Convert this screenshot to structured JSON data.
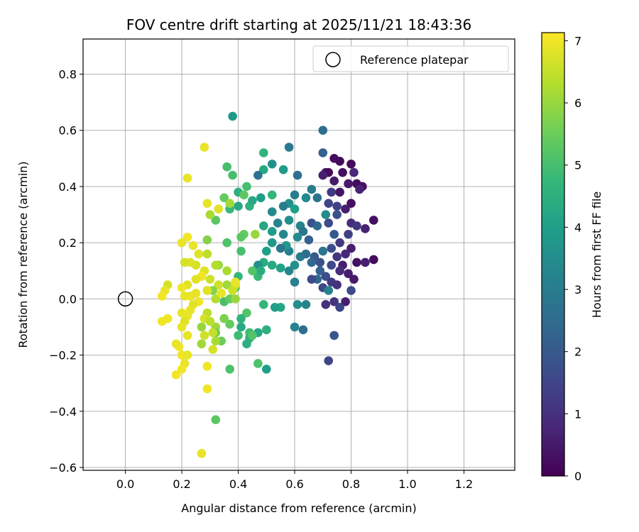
{
  "chart_data": {
    "type": "scatter",
    "title": "FOV centre drift starting at 2025/11/21 18:43:36",
    "xlabel": "Angular distance from reference (arcmin)",
    "ylabel": "Rotation from reference (arcmin)",
    "xlim": [
      -0.15,
      1.38
    ],
    "ylim": [
      -0.61,
      0.925
    ],
    "xticks": [
      0.0,
      0.2,
      0.4,
      0.6,
      0.8,
      1.0,
      1.2
    ],
    "xtick_labels": [
      "0.0",
      "0.2",
      "0.4",
      "0.6",
      "0.8",
      "1.0",
      "1.2"
    ],
    "yticks": [
      -0.6,
      -0.4,
      -0.2,
      0.0,
      0.2,
      0.4,
      0.6,
      0.8
    ],
    "ytick_labels": [
      "−0.6",
      "−0.4",
      "−0.2",
      "0.0",
      "0.2",
      "0.4",
      "0.6",
      "0.8"
    ],
    "grid": true,
    "legend": {
      "placement": "top-right",
      "entries": [
        "Reference platepar"
      ]
    },
    "reference_point": {
      "x": 0.0,
      "y": 0.0
    },
    "colorbar": {
      "label": "Hours from first FF file",
      "range": [
        0,
        7.13
      ],
      "ticks": [
        0,
        1,
        2,
        3,
        4,
        5,
        6,
        7
      ],
      "tick_labels": [
        "0",
        "1",
        "2",
        "3",
        "4",
        "5",
        "6",
        "7"
      ],
      "colormap": "viridis",
      "colors": [
        "#440154",
        "#482878",
        "#3e4989",
        "#31688e",
        "#26828e",
        "#1f9e89",
        "#35b779",
        "#6ece58",
        "#b5de2b",
        "#fde725"
      ]
    },
    "points": [
      [
        0.74,
        0.5,
        0.2
      ],
      [
        0.76,
        0.49,
        0.2
      ],
      [
        0.8,
        0.48,
        0.2
      ],
      [
        0.77,
        0.45,
        0.3
      ],
      [
        0.81,
        0.45,
        0.8
      ],
      [
        0.71,
        0.45,
        0.4
      ],
      [
        0.82,
        0.41,
        0.2
      ],
      [
        0.84,
        0.4,
        0.3
      ],
      [
        0.79,
        0.41,
        0.5
      ],
      [
        0.74,
        0.42,
        0.5
      ],
      [
        0.72,
        0.45,
        0.2
      ],
      [
        0.7,
        0.44,
        0.6
      ],
      [
        0.73,
        0.38,
        1.2
      ],
      [
        0.76,
        0.38,
        0.4
      ],
      [
        0.83,
        0.39,
        0.7
      ],
      [
        0.8,
        0.34,
        0.3
      ],
      [
        0.78,
        0.32,
        0.6
      ],
      [
        0.75,
        0.33,
        1.4
      ],
      [
        0.72,
        0.34,
        1.5
      ],
      [
        0.75,
        0.3,
        1.8
      ],
      [
        0.72,
        0.27,
        1.6
      ],
      [
        0.8,
        0.27,
        0.9
      ],
      [
        0.82,
        0.26,
        1.1
      ],
      [
        0.85,
        0.25,
        0.7
      ],
      [
        0.79,
        0.23,
        1.4
      ],
      [
        0.88,
        0.28,
        0.3
      ],
      [
        0.71,
        0.3,
        3.4
      ],
      [
        0.74,
        0.23,
        2.0
      ],
      [
        0.76,
        0.2,
        1.2
      ],
      [
        0.8,
        0.18,
        0.6
      ],
      [
        0.78,
        0.16,
        0.8
      ],
      [
        0.73,
        0.18,
        1.7
      ],
      [
        0.7,
        0.17,
        2.8
      ],
      [
        0.75,
        0.15,
        1.1
      ],
      [
        0.77,
        0.12,
        0.6
      ],
      [
        0.82,
        0.13,
        0.3
      ],
      [
        0.85,
        0.13,
        0.6
      ],
      [
        0.88,
        0.14,
        0.2
      ],
      [
        0.76,
        0.1,
        0.9
      ],
      [
        0.73,
        0.12,
        1.6
      ],
      [
        0.69,
        0.1,
        2.2
      ],
      [
        0.71,
        0.08,
        1.7
      ],
      [
        0.68,
        0.07,
        2.4
      ],
      [
        0.73,
        0.06,
        1.2
      ],
      [
        0.7,
        0.04,
        1.6
      ],
      [
        0.72,
        0.03,
        3.2
      ],
      [
        0.79,
        0.09,
        0.6
      ],
      [
        0.81,
        0.07,
        0.5
      ],
      [
        0.8,
        0.03,
        1.6
      ],
      [
        0.75,
        0.05,
        1.0
      ],
      [
        0.71,
        -0.02,
        1.0
      ],
      [
        0.74,
        -0.01,
        1.1
      ],
      [
        0.78,
        -0.01,
        0.6
      ],
      [
        0.76,
        -0.03,
        1.5
      ],
      [
        0.74,
        -0.13,
        1.9
      ],
      [
        0.72,
        -0.22,
        1.5
      ],
      [
        0.7,
        0.6,
        2.6
      ],
      [
        0.7,
        0.52,
        2.2
      ],
      [
        0.68,
        0.36,
        2.7
      ],
      [
        0.66,
        0.39,
        3.0
      ],
      [
        0.64,
        0.36,
        3.4
      ],
      [
        0.6,
        0.37,
        3.0
      ],
      [
        0.58,
        0.34,
        3.6
      ],
      [
        0.56,
        0.33,
        3.0
      ],
      [
        0.6,
        0.32,
        4.0
      ],
      [
        0.62,
        0.26,
        3.2
      ],
      [
        0.63,
        0.24,
        2.8
      ],
      [
        0.66,
        0.27,
        1.8
      ],
      [
        0.68,
        0.26,
        2.4
      ],
      [
        0.65,
        0.21,
        2.2
      ],
      [
        0.61,
        0.22,
        3.4
      ],
      [
        0.58,
        0.17,
        3.1
      ],
      [
        0.62,
        0.15,
        3.0
      ],
      [
        0.64,
        0.16,
        2.6
      ],
      [
        0.67,
        0.15,
        2.0
      ],
      [
        0.66,
        0.13,
        2.4
      ],
      [
        0.69,
        0.13,
        1.8
      ],
      [
        0.66,
        0.07,
        1.6
      ],
      [
        0.6,
        0.12,
        3.6
      ],
      [
        0.58,
        0.1,
        3.3
      ],
      [
        0.55,
        0.11,
        4.1
      ],
      [
        0.57,
        0.19,
        3.8
      ],
      [
        0.55,
        0.18,
        2.8
      ],
      [
        0.56,
        0.23,
        3.3
      ],
      [
        0.54,
        0.27,
        3.2
      ],
      [
        0.58,
        0.28,
        3.5
      ],
      [
        0.58,
        0.54,
        2.9
      ],
      [
        0.56,
        0.46,
        3.9
      ],
      [
        0.61,
        0.44,
        2.6
      ],
      [
        0.52,
        0.48,
        3.6
      ],
      [
        0.49,
        0.46,
        4.3
      ],
      [
        0.47,
        0.44,
        2.7
      ],
      [
        0.49,
        0.52,
        4.6
      ],
      [
        0.38,
        0.65,
        3.8
      ],
      [
        0.52,
        0.37,
        4.7
      ],
      [
        0.52,
        0.31,
        3.4
      ],
      [
        0.48,
        0.36,
        4.0
      ],
      [
        0.52,
        0.24,
        3.9
      ],
      [
        0.49,
        0.26,
        4.2
      ],
      [
        0.5,
        0.17,
        4.0
      ],
      [
        0.52,
        0.2,
        3.8
      ],
      [
        0.49,
        0.13,
        4.4
      ],
      [
        0.47,
        0.12,
        3.6
      ],
      [
        0.52,
        0.12,
        4.3
      ],
      [
        0.47,
        0.08,
        4.8
      ],
      [
        0.48,
        0.1,
        4.4
      ],
      [
        0.45,
        0.1,
        5.2
      ],
      [
        0.6,
        0.06,
        3.1
      ],
      [
        0.61,
        -0.02,
        3.5
      ],
      [
        0.64,
        -0.02,
        3.2
      ],
      [
        0.55,
        -0.03,
        4.2
      ],
      [
        0.53,
        -0.03,
        4.0
      ],
      [
        0.6,
        -0.1,
        3.2
      ],
      [
        0.63,
        -0.11,
        2.6
      ],
      [
        0.49,
        -0.02,
        4.7
      ],
      [
        0.5,
        -0.11,
        4.5
      ],
      [
        0.47,
        -0.23,
        5.1
      ],
      [
        0.5,
        -0.25,
        4.0
      ],
      [
        0.47,
        -0.12,
        4.2
      ],
      [
        0.4,
        0.38,
        4.5
      ],
      [
        0.43,
        0.4,
        5.0
      ],
      [
        0.42,
        0.37,
        5.3
      ],
      [
        0.44,
        0.33,
        4.6
      ],
      [
        0.45,
        0.35,
        4.3
      ],
      [
        0.4,
        0.33,
        4.3
      ],
      [
        0.36,
        0.47,
        5.0
      ],
      [
        0.38,
        0.44,
        5.0
      ],
      [
        0.37,
        0.32,
        4.8
      ],
      [
        0.35,
        0.36,
        5.4
      ],
      [
        0.46,
        0.23,
        6.0
      ],
      [
        0.42,
        0.23,
        5.4
      ],
      [
        0.41,
        0.22,
        5.3
      ],
      [
        0.41,
        0.17,
        5.0
      ],
      [
        0.36,
        0.2,
        5.1
      ],
      [
        0.4,
        0.08,
        4.7
      ],
      [
        0.39,
        0.04,
        5.2
      ],
      [
        0.36,
        0.05,
        6.1
      ],
      [
        0.35,
        -0.01,
        5.0
      ],
      [
        0.37,
        0.0,
        5.4
      ],
      [
        0.39,
        0.0,
        6.0
      ],
      [
        0.43,
        -0.05,
        5.2
      ],
      [
        0.41,
        -0.07,
        4.6
      ],
      [
        0.41,
        -0.1,
        4.3
      ],
      [
        0.44,
        -0.12,
        4.9
      ],
      [
        0.44,
        -0.14,
        4.5
      ],
      [
        0.43,
        -0.16,
        4.5
      ],
      [
        0.45,
        -0.13,
        5.2
      ],
      [
        0.4,
        -0.13,
        4.9
      ],
      [
        0.37,
        -0.09,
        5.4
      ],
      [
        0.35,
        -0.07,
        5.7
      ],
      [
        0.34,
        -0.15,
        5.5
      ],
      [
        0.37,
        -0.25,
        5.1
      ],
      [
        0.32,
        -0.1,
        6.1
      ],
      [
        0.32,
        -0.12,
        5.5
      ],
      [
        0.32,
        -0.43,
        5.3
      ],
      [
        0.29,
        0.21,
        5.8
      ],
      [
        0.32,
        0.28,
        5.3
      ],
      [
        0.3,
        0.3,
        6.2
      ],
      [
        0.33,
        0.32,
        6.8
      ],
      [
        0.37,
        0.34,
        6.1
      ],
      [
        0.33,
        0.12,
        6.0
      ],
      [
        0.32,
        0.12,
        6.3
      ],
      [
        0.36,
        0.1,
        6.2
      ],
      [
        0.3,
        0.07,
        6.6
      ],
      [
        0.33,
        0.05,
        6.6
      ],
      [
        0.34,
        0.02,
        6.4
      ],
      [
        0.31,
        0.03,
        5.8
      ],
      [
        0.29,
        0.03,
        6.8
      ],
      [
        0.32,
        0.0,
        6.3
      ],
      [
        0.29,
        -0.05,
        6.4
      ],
      [
        0.28,
        -0.07,
        6.7
      ],
      [
        0.3,
        -0.08,
        6.4
      ],
      [
        0.27,
        -0.1,
        6.0
      ],
      [
        0.31,
        -0.12,
        6.5
      ],
      [
        0.32,
        -0.15,
        6.2
      ],
      [
        0.28,
        -0.13,
        6.6
      ],
      [
        0.27,
        -0.16,
        6.1
      ],
      [
        0.31,
        -0.18,
        6.7
      ],
      [
        0.29,
        -0.24,
        7.0
      ],
      [
        0.29,
        -0.32,
        7.0
      ],
      [
        0.27,
        -0.55,
        6.9
      ],
      [
        0.28,
        0.54,
        6.9
      ],
      [
        0.22,
        0.43,
        6.9
      ],
      [
        0.29,
        0.34,
        6.9
      ],
      [
        0.22,
        0.22,
        7.0
      ],
      [
        0.24,
        0.19,
        6.9
      ],
      [
        0.2,
        0.2,
        6.9
      ],
      [
        0.26,
        0.16,
        6.8
      ],
      [
        0.29,
        0.16,
        6.4
      ],
      [
        0.23,
        0.13,
        6.8
      ],
      [
        0.25,
        0.12,
        6.7
      ],
      [
        0.21,
        0.13,
        6.7
      ],
      [
        0.28,
        0.1,
        6.8
      ],
      [
        0.27,
        0.08,
        7.0
      ],
      [
        0.25,
        0.07,
        6.8
      ],
      [
        0.22,
        0.05,
        6.8
      ],
      [
        0.2,
        0.04,
        7.0
      ],
      [
        0.23,
        0.01,
        6.9
      ],
      [
        0.25,
        0.02,
        6.9
      ],
      [
        0.21,
        0.01,
        6.9
      ],
      [
        0.26,
        -0.01,
        7.0
      ],
      [
        0.24,
        -0.02,
        6.8
      ],
      [
        0.23,
        -0.04,
        6.9
      ],
      [
        0.2,
        -0.05,
        6.9
      ],
      [
        0.22,
        -0.06,
        6.9
      ],
      [
        0.21,
        -0.08,
        6.8
      ],
      [
        0.2,
        -0.1,
        6.9
      ],
      [
        0.22,
        -0.13,
        6.9
      ],
      [
        0.19,
        -0.17,
        7.0
      ],
      [
        0.18,
        -0.16,
        6.9
      ],
      [
        0.2,
        -0.2,
        7.0
      ],
      [
        0.22,
        -0.2,
        6.9
      ],
      [
        0.21,
        -0.23,
        6.9
      ],
      [
        0.2,
        -0.25,
        7.0
      ],
      [
        0.18,
        -0.27,
        7.0
      ],
      [
        0.15,
        0.05,
        6.7
      ],
      [
        0.14,
        0.03,
        6.9
      ],
      [
        0.13,
        0.01,
        7.0
      ],
      [
        0.15,
        -0.07,
        7.0
      ],
      [
        0.13,
        -0.08,
        7.0
      ],
      [
        0.29,
        0.03,
        6.8
      ],
      [
        0.34,
        0.02,
        6.9
      ],
      [
        0.39,
        0.05,
        6.7
      ],
      [
        0.39,
        0.06,
        6.9
      ],
      [
        0.38,
        0.03,
        6.6
      ]
    ]
  }
}
